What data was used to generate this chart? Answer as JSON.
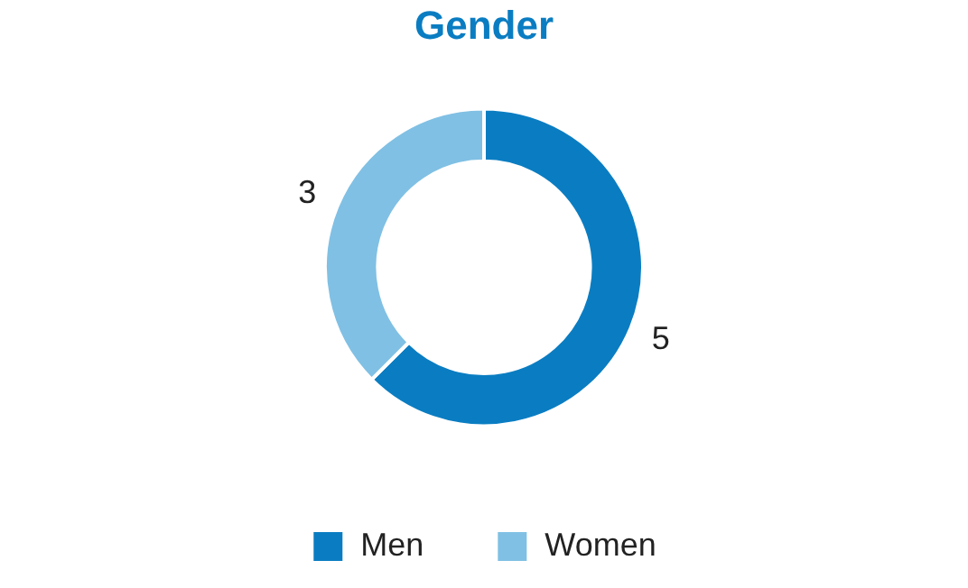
{
  "chart_data": {
    "type": "donut",
    "title": "Gender",
    "categories": [
      "Men",
      "Women"
    ],
    "values": [
      5,
      3
    ],
    "colors": [
      "#0a7dc2",
      "#80c0e4"
    ],
    "data_labels": true,
    "legend": "bottom"
  }
}
